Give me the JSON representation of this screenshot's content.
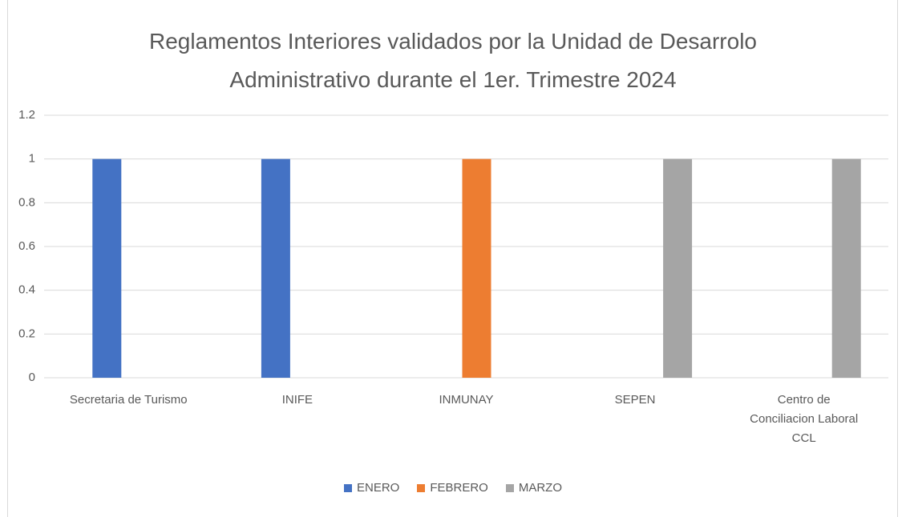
{
  "chart_data": {
    "type": "bar",
    "title": "Reglamentos Interiores validados por la Unidad de Desarrolo Administrativo durante el 1er. Trimestre 2024",
    "categories": [
      "Secretaria de Turismo",
      "INIFE",
      "INMUNAY",
      "SEPEN",
      "Centro de Conciliacion Laboral CCL"
    ],
    "series": [
      {
        "name": "ENERO",
        "color": "#4472c4",
        "values": [
          1,
          1,
          null,
          null,
          null
        ]
      },
      {
        "name": "FEBRERO",
        "color": "#ed7d31",
        "values": [
          null,
          null,
          1,
          null,
          null
        ]
      },
      {
        "name": "MARZO",
        "color": "#a5a5a5",
        "values": [
          null,
          null,
          null,
          1,
          1
        ]
      }
    ],
    "ylim": [
      0,
      1.2
    ],
    "yticks": [
      0,
      0.2,
      0.4,
      0.6,
      0.8,
      1,
      1.2
    ],
    "grid": true,
    "legend": "bottom"
  }
}
